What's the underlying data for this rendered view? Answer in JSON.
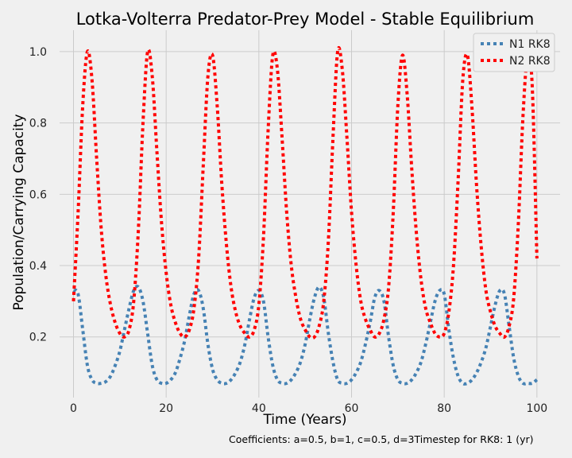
{
  "chart_data": {
    "type": "line",
    "title": "Lotka-Volterra Predator-Prey Model - Stable Equilibrium",
    "xlabel": "Time (Years)",
    "ylabel": "Population/Carrying Capacity",
    "xlim": [
      -3,
      105
    ],
    "ylim": [
      0.03,
      1.06
    ],
    "xticks": [
      0,
      20,
      40,
      60,
      80,
      100
    ],
    "yticks": [
      0.2,
      0.4,
      0.6,
      0.8,
      1.0
    ],
    "xtick_labels": [
      "0",
      "20",
      "40",
      "60",
      "80",
      "100"
    ],
    "ytick_labels": [
      "0.2",
      "0.4",
      "0.6",
      "0.8",
      "1.0"
    ],
    "grid": true,
    "legend_position": "top-right",
    "footnote": "Coefficients: a=0.5, b=1, c=0.5, d=3Timestep for RK8: 1 (yr)",
    "series": [
      {
        "name": "N1 RK8",
        "color": "#4682b4",
        "style": "dotted",
        "x": [
          0,
          1,
          2,
          3,
          4,
          5,
          6,
          7,
          8,
          9,
          10,
          11,
          12,
          13,
          14,
          15,
          16,
          17,
          18,
          19,
          20,
          21,
          22,
          23,
          24,
          25,
          26,
          27,
          28,
          29,
          30,
          31,
          32,
          33,
          34,
          35,
          36,
          37,
          38,
          39,
          40,
          41,
          42,
          43,
          44,
          45,
          46,
          47,
          48,
          49,
          50,
          51,
          52,
          53,
          54,
          55,
          56,
          57,
          58,
          59,
          60,
          61,
          62,
          63,
          64,
          65,
          66,
          67,
          68,
          69,
          70,
          71,
          72,
          73,
          74,
          75,
          76,
          77,
          78,
          79,
          80,
          81,
          82,
          83,
          84,
          85,
          86,
          87,
          88,
          89,
          90,
          91,
          92,
          93,
          94,
          95,
          96,
          97,
          98,
          99,
          100
        ],
        "values": [
          0.33,
          0.32,
          0.22,
          0.12,
          0.08,
          0.07,
          0.07,
          0.075,
          0.09,
          0.12,
          0.16,
          0.22,
          0.28,
          0.33,
          0.34,
          0.3,
          0.21,
          0.12,
          0.08,
          0.07,
          0.07,
          0.08,
          0.1,
          0.14,
          0.19,
          0.26,
          0.32,
          0.33,
          0.28,
          0.18,
          0.11,
          0.08,
          0.07,
          0.07,
          0.08,
          0.1,
          0.13,
          0.18,
          0.25,
          0.31,
          0.33,
          0.3,
          0.2,
          0.12,
          0.08,
          0.07,
          0.07,
          0.08,
          0.1,
          0.13,
          0.18,
          0.25,
          0.31,
          0.34,
          0.31,
          0.21,
          0.13,
          0.08,
          0.07,
          0.07,
          0.08,
          0.1,
          0.13,
          0.18,
          0.24,
          0.31,
          0.33,
          0.3,
          0.2,
          0.12,
          0.08,
          0.07,
          0.07,
          0.08,
          0.1,
          0.13,
          0.18,
          0.24,
          0.3,
          0.33,
          0.32,
          0.22,
          0.14,
          0.09,
          0.07,
          0.07,
          0.08,
          0.1,
          0.13,
          0.17,
          0.23,
          0.29,
          0.33,
          0.32,
          0.23,
          0.14,
          0.09,
          0.07,
          0.07,
          0.07,
          0.08
        ]
      },
      {
        "name": "N2 RK8",
        "color": "#ff0000",
        "style": "dotted",
        "x": [
          0,
          1,
          2,
          3,
          4,
          5,
          6,
          7,
          8,
          9,
          10,
          11,
          12,
          13,
          14,
          15,
          16,
          17,
          18,
          19,
          20,
          21,
          22,
          23,
          24,
          25,
          26,
          27,
          28,
          29,
          30,
          31,
          32,
          33,
          34,
          35,
          36,
          37,
          38,
          39,
          40,
          41,
          42,
          43,
          44,
          45,
          46,
          47,
          48,
          49,
          50,
          51,
          52,
          53,
          54,
          55,
          56,
          57,
          58,
          59,
          60,
          61,
          62,
          63,
          64,
          65,
          66,
          67,
          68,
          69,
          70,
          71,
          72,
          73,
          74,
          75,
          76,
          77,
          78,
          79,
          80,
          81,
          82,
          83,
          84,
          85,
          86,
          87,
          88,
          89,
          90,
          91,
          92,
          93,
          94,
          95,
          96,
          97,
          98,
          99,
          100
        ],
        "values": [
          0.3,
          0.55,
          0.85,
          1.0,
          0.92,
          0.7,
          0.5,
          0.37,
          0.29,
          0.24,
          0.21,
          0.2,
          0.22,
          0.3,
          0.5,
          0.8,
          1.0,
          0.93,
          0.72,
          0.52,
          0.38,
          0.29,
          0.24,
          0.21,
          0.2,
          0.22,
          0.28,
          0.42,
          0.68,
          0.93,
          0.99,
          0.85,
          0.63,
          0.46,
          0.34,
          0.27,
          0.23,
          0.21,
          0.2,
          0.22,
          0.29,
          0.48,
          0.78,
          0.99,
          0.95,
          0.76,
          0.55,
          0.4,
          0.31,
          0.25,
          0.22,
          0.2,
          0.2,
          0.23,
          0.3,
          0.47,
          0.76,
          1.0,
          0.95,
          0.76,
          0.55,
          0.4,
          0.3,
          0.25,
          0.22,
          0.2,
          0.21,
          0.25,
          0.34,
          0.55,
          0.85,
          0.99,
          0.88,
          0.67,
          0.49,
          0.36,
          0.28,
          0.24,
          0.21,
          0.2,
          0.21,
          0.27,
          0.4,
          0.64,
          0.92,
          0.99,
          0.84,
          0.62,
          0.45,
          0.33,
          0.27,
          0.23,
          0.21,
          0.2,
          0.23,
          0.31,
          0.52,
          0.82,
          0.99,
          0.9,
          0.42
        ]
      }
    ]
  }
}
